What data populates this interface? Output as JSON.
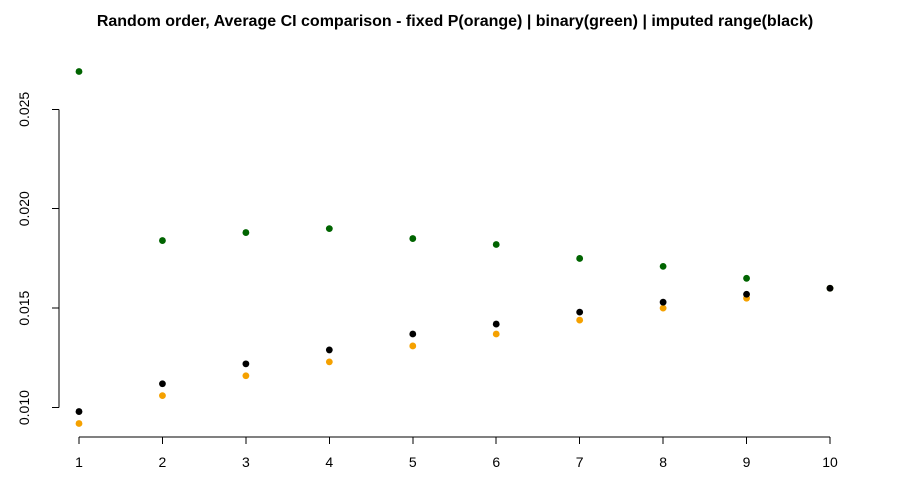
{
  "chart_data": {
    "type": "scatter",
    "title": "Random order, Average CI comparison - fixed P(orange) | binary(green) | imputed range(black)",
    "xlabel": "",
    "ylabel": "",
    "x": [
      1,
      2,
      3,
      4,
      5,
      6,
      7,
      8,
      9,
      10
    ],
    "x_ticks": [
      "1",
      "2",
      "3",
      "4",
      "5",
      "6",
      "7",
      "8",
      "9",
      "10"
    ],
    "y_ticks": [
      "0.010",
      "0.015",
      "0.020",
      "0.025"
    ],
    "y_tick_values": [
      0.01,
      0.015,
      0.02,
      0.025
    ],
    "xlim": [
      1,
      10
    ],
    "ylim": [
      0.0092,
      0.0269
    ],
    "grid": false,
    "legend": "none",
    "series": [
      {
        "color": "#f5a100",
        "values": [
          0.0092,
          0.0106,
          0.0116,
          0.0123,
          0.0131,
          0.0137,
          0.0144,
          0.015,
          0.0155,
          0.016
        ]
      },
      {
        "color": "#006400",
        "values": [
          0.0269,
          0.0184,
          0.0188,
          0.019,
          0.0185,
          0.0182,
          0.0175,
          0.0171,
          0.0165,
          0.016
        ]
      },
      {
        "color": "#000000",
        "values": [
          0.0098,
          0.0112,
          0.0122,
          0.0129,
          0.0137,
          0.0142,
          0.0148,
          0.0153,
          0.0157,
          0.016
        ]
      }
    ]
  }
}
